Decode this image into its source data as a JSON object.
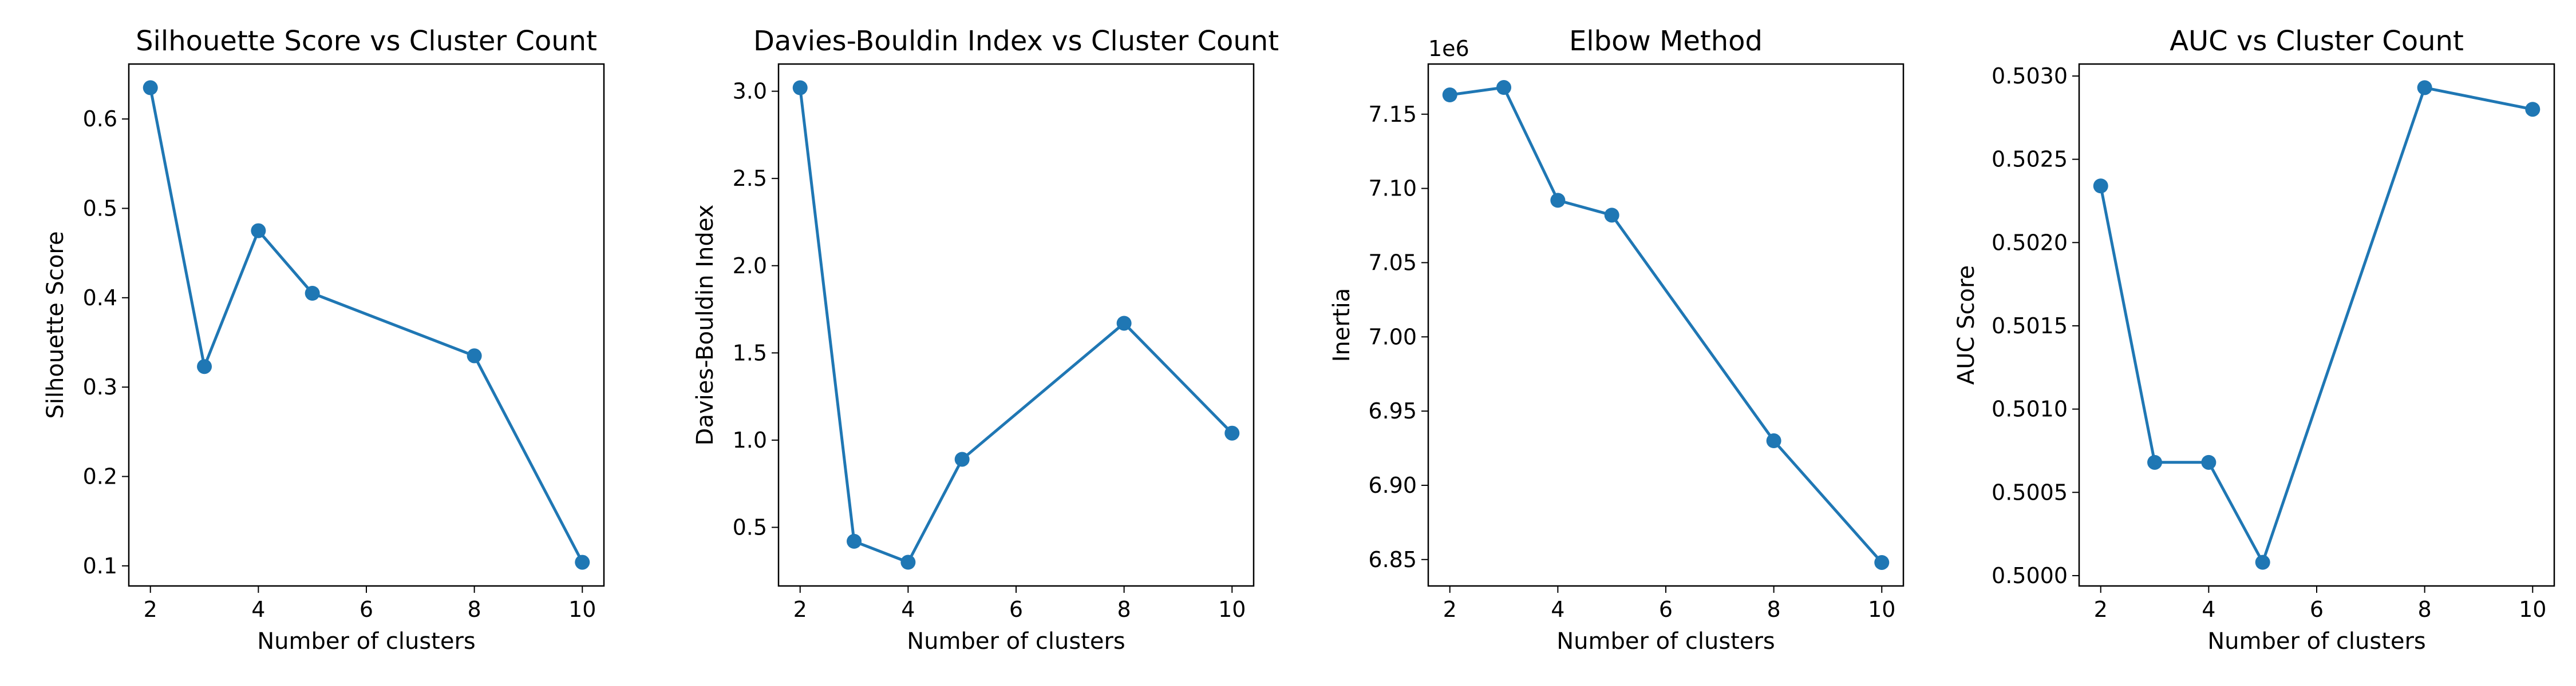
{
  "colors": {
    "series": "#1f77b4",
    "axis": "#000000",
    "background": "#ffffff"
  },
  "chart_data": [
    {
      "type": "line",
      "title": "Silhouette Score vs Cluster Count",
      "xlabel": "Number of clusters",
      "ylabel": "Silhouette Score",
      "offset_label": "",
      "x": [
        2,
        3,
        4,
        5,
        8,
        10
      ],
      "series": [
        {
          "values": [
            0.635,
            0.323,
            0.475,
            0.405,
            0.335,
            0.104
          ]
        }
      ],
      "xlim": [
        1.6,
        10.4
      ],
      "ylim": [
        0.0775,
        0.6615
      ],
      "xticks": [
        2,
        4,
        6,
        8,
        10
      ],
      "xtick_labels": [
        "2",
        "4",
        "6",
        "8",
        "10"
      ],
      "yticks": [
        0.1,
        0.2,
        0.3,
        0.4,
        0.5,
        0.6
      ],
      "ytick_labels": [
        "0.1",
        "0.2",
        "0.3",
        "0.4",
        "0.5",
        "0.6"
      ],
      "grid": false,
      "markers": true
    },
    {
      "type": "line",
      "title": "Davies-Bouldin Index vs Cluster Count",
      "xlabel": "Number of clusters",
      "ylabel": "Davies-Bouldin Index",
      "offset_label": "",
      "x": [
        2,
        3,
        4,
        5,
        8,
        10
      ],
      "series": [
        {
          "values": [
            3.02,
            0.42,
            0.3,
            0.89,
            1.67,
            1.04
          ]
        }
      ],
      "xlim": [
        1.6,
        10.4
      ],
      "ylim": [
        0.164,
        3.156
      ],
      "xticks": [
        2,
        4,
        6,
        8,
        10
      ],
      "xtick_labels": [
        "2",
        "4",
        "6",
        "8",
        "10"
      ],
      "yticks": [
        0.5,
        1.0,
        1.5,
        2.0,
        2.5,
        3.0
      ],
      "ytick_labels": [
        "0.5",
        "1.0",
        "1.5",
        "2.0",
        "2.5",
        "3.0"
      ],
      "grid": false,
      "markers": true
    },
    {
      "type": "line",
      "title": "Elbow Method",
      "xlabel": "Number of clusters",
      "ylabel": "Inertia",
      "offset_label": "1e6",
      "x": [
        2,
        3,
        4,
        5,
        8,
        10
      ],
      "series": [
        {
          "values": [
            7.163,
            7.168,
            7.092,
            7.082,
            6.93,
            6.848
          ]
        }
      ],
      "xlim": [
        1.6,
        10.4
      ],
      "ylim": [
        6.8322,
        7.1838
      ],
      "xticks": [
        2,
        4,
        6,
        8,
        10
      ],
      "xtick_labels": [
        "2",
        "4",
        "6",
        "8",
        "10"
      ],
      "yticks": [
        6.85,
        6.9,
        6.95,
        7.0,
        7.05,
        7.1,
        7.15
      ],
      "ytick_labels": [
        "6.85",
        "6.90",
        "6.95",
        "7.00",
        "7.05",
        "7.10",
        "7.15"
      ],
      "grid": false,
      "markers": true
    },
    {
      "type": "line",
      "title": "AUC vs Cluster Count",
      "xlabel": "Number of clusters",
      "ylabel": "AUC Score",
      "offset_label": "",
      "x": [
        2,
        3,
        4,
        5,
        8,
        10
      ],
      "series": [
        {
          "values": [
            0.50234,
            0.50068,
            0.50068,
            0.50008,
            0.50293,
            0.5028
          ]
        }
      ],
      "xlim": [
        1.6,
        10.4
      ],
      "ylim": [
        0.499938,
        0.503072
      ],
      "xticks": [
        2,
        4,
        6,
        8,
        10
      ],
      "xtick_labels": [
        "2",
        "4",
        "6",
        "8",
        "10"
      ],
      "yticks": [
        0.5,
        0.5005,
        0.501,
        0.5015,
        0.502,
        0.5025,
        0.503
      ],
      "ytick_labels": [
        "0.5000",
        "0.5005",
        "0.5010",
        "0.5015",
        "0.5020",
        "0.5025",
        "0.5030"
      ],
      "grid": false,
      "markers": true
    }
  ]
}
